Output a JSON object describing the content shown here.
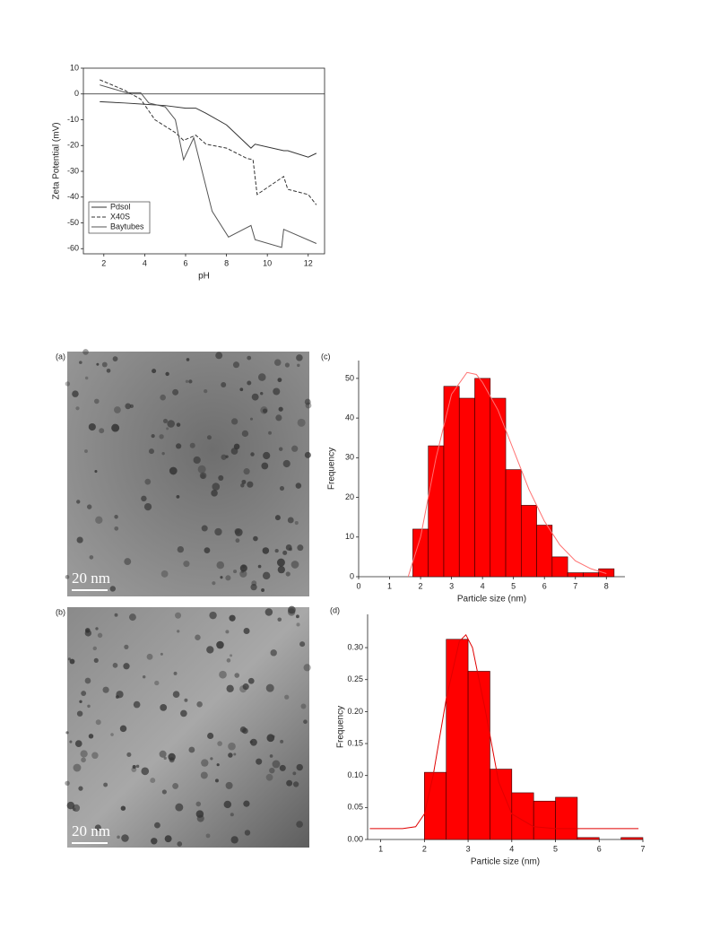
{
  "chart_data": [
    {
      "type": "line",
      "xlabel": "pH",
      "ylabel": "Zeta Potential (mV)",
      "xlim": [
        1,
        12.8
      ],
      "xticks": [
        2,
        4,
        6,
        8,
        10,
        12
      ],
      "ylim": [
        -62,
        10
      ],
      "yticks": [
        -60,
        -50,
        -40,
        -30,
        -20,
        -10,
        0,
        10
      ],
      "hline": 0,
      "legend": "lower left",
      "series": [
        {
          "name": "Pdsol",
          "color": "#333333",
          "line_style": "solid",
          "x": [
            1.8,
            3,
            4,
            5,
            6,
            6.5,
            7,
            8,
            9.2,
            9.4,
            10.8,
            11,
            12,
            12.4
          ],
          "values": [
            -3,
            -3.5,
            -4,
            -4.5,
            -5.5,
            -5.5,
            -7.5,
            -12,
            -21,
            -19.5,
            -22,
            -22,
            -24.5,
            -23
          ]
        },
        {
          "name": "X40S",
          "color": "#333333",
          "line_style": "dashed",
          "x": [
            1.8,
            3,
            3.8,
            4.5,
            5.5,
            5.9,
            6.5,
            7,
            8,
            9,
            9.3,
            9.5,
            10.8,
            11,
            12,
            12.4
          ],
          "values": [
            5.5,
            1.5,
            -2,
            -10,
            -15,
            -18,
            -16,
            -19.5,
            -21,
            -25,
            -25.5,
            -39,
            -32,
            -37,
            -39,
            -43
          ]
        },
        {
          "name": "Baytubes",
          "color": "#555555",
          "line_style": "solid",
          "x": [
            1.8,
            3.1,
            3.8,
            4.2,
            5,
            5.5,
            5.9,
            6.4,
            7.3,
            8.1,
            9.2,
            9.4,
            10.7,
            10.8,
            12.4
          ],
          "values": [
            3.5,
            0.5,
            0.5,
            -3.5,
            -5,
            -10,
            -25.5,
            -17,
            -45.5,
            -55.5,
            -51,
            -56.5,
            -59.5,
            -52.5,
            -58
          ]
        }
      ]
    },
    {
      "type": "histogram",
      "panel_label": "(c)",
      "xlabel": "Particle size (nm)",
      "ylabel": "Frequency",
      "xlim": [
        0,
        8.6
      ],
      "xticks": [
        0,
        1,
        2,
        3,
        4,
        5,
        6,
        7,
        8
      ],
      "ylim": [
        0,
        54.5
      ],
      "yticks": [
        0,
        10,
        20,
        30,
        40,
        50
      ],
      "color": "#ff0000",
      "fit_color": "#ff7070",
      "bins": [
        1.75,
        2.25,
        2.75,
        3.25,
        3.75,
        4.25,
        4.75,
        5.25,
        5.75,
        6.25,
        6.75,
        7.25,
        7.75,
        8.25
      ],
      "counts": [
        12,
        33,
        48,
        45,
        50,
        45,
        27,
        18,
        13,
        5,
        1,
        1,
        2
      ],
      "fit": {
        "x": [
          1.6,
          2,
          2.5,
          3,
          3.5,
          3.8,
          4,
          4.5,
          5,
          5.5,
          6,
          6.5,
          7,
          7.5,
          8
        ],
        "y": [
          0,
          10,
          30,
          46,
          51.5,
          51,
          49,
          42,
          32,
          22,
          14,
          8,
          4,
          2,
          0.8
        ]
      }
    },
    {
      "type": "histogram",
      "panel_label": "(d)",
      "xlabel": "Particle size (nm)",
      "ylabel": "Frequency",
      "xlim": [
        0.7,
        7
      ],
      "xticks": [
        1,
        2,
        3,
        4,
        5,
        6,
        7
      ],
      "ylim": [
        0,
        0.352
      ],
      "yticks": [
        {
          "value": 0,
          "label": "0.00"
        },
        {
          "value": 0.05,
          "label": "0.05"
        },
        {
          "value": 0.1,
          "label": "0.10"
        },
        {
          "value": 0.15,
          "label": "0.15"
        },
        {
          "value": 0.2,
          "label": "0.20"
        },
        {
          "value": 0.25,
          "label": "0.25"
        },
        {
          "value": 0.3,
          "label": "0.30"
        }
      ],
      "color": "#ff0000",
      "fit_color": "#e00000",
      "bins": [
        2,
        2.5,
        3,
        3.5,
        4,
        4.5,
        5,
        5.5,
        6,
        6.5,
        7
      ],
      "counts": [
        0.105,
        0.313,
        0.263,
        0.11,
        0.073,
        0.06,
        0.066,
        0.003,
        0,
        0.003
      ],
      "fit": {
        "x": [
          0.75,
          1.5,
          1.8,
          2,
          2.2,
          2.5,
          2.8,
          2.95,
          3.1,
          3.4,
          3.7,
          4,
          4.5,
          5,
          6,
          6.9
        ],
        "y": [
          0.017,
          0.017,
          0.02,
          0.04,
          0.1,
          0.22,
          0.31,
          0.32,
          0.3,
          0.2,
          0.09,
          0.04,
          0.02,
          0.017,
          0.017,
          0.017
        ]
      }
    }
  ],
  "images": [
    {
      "label": "(a)",
      "scale_bar": "20 nm"
    },
    {
      "label": "(b)",
      "scale_bar": "20 nm"
    }
  ]
}
